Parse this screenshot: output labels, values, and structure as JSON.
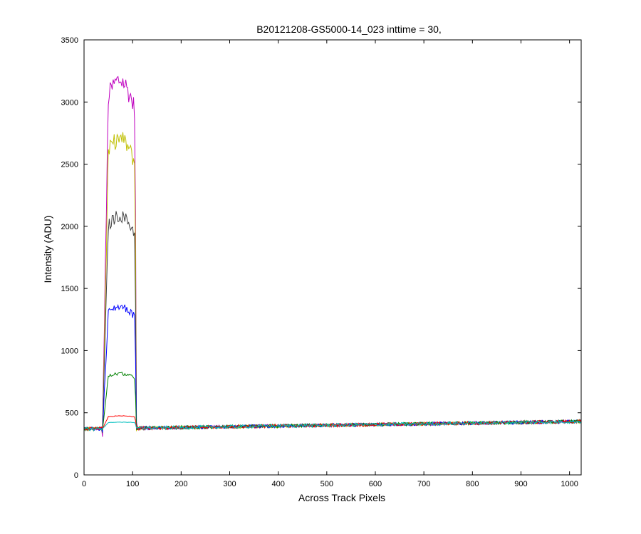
{
  "chart_data": {
    "type": "line",
    "title": "B20121208-GS5000-14_023 inttime = 30,",
    "xlabel": "Across Track Pixels",
    "ylabel": "Intensity (ADU)",
    "xlim": [
      0,
      1024
    ],
    "ylim": [
      0,
      3500
    ],
    "xticks": [
      0,
      100,
      200,
      300,
      400,
      500,
      600,
      700,
      800,
      900,
      1000
    ],
    "yticks": [
      0,
      500,
      1000,
      1500,
      2000,
      2500,
      3000,
      3500
    ],
    "grid": false,
    "legend": "none",
    "series": [
      {
        "color": "#bf00bf",
        "baseline_start": 370,
        "baseline_end": 430,
        "peak_range": [
          38,
          108
        ],
        "peak_level": 3170
      },
      {
        "color": "#bfbf00",
        "baseline_start": 370,
        "baseline_end": 430,
        "peak_range": [
          38,
          108
        ],
        "peak_level": 2700
      },
      {
        "color": "#404040",
        "baseline_start": 370,
        "baseline_end": 430,
        "peak_range": [
          38,
          108
        ],
        "peak_level": 2080
      },
      {
        "color": "#0000ff",
        "baseline_start": 370,
        "baseline_end": 430,
        "peak_range": [
          38,
          108
        ],
        "peak_level": 1350
      },
      {
        "color": "#008000",
        "baseline_start": 370,
        "baseline_end": 430,
        "peak_range": [
          38,
          108
        ],
        "peak_level": 810
      },
      {
        "color": "#ff0000",
        "baseline_start": 370,
        "baseline_end": 430,
        "peak_range": [
          38,
          108
        ],
        "peak_level": 470
      },
      {
        "color": "#00bfbf",
        "baseline_start": 370,
        "baseline_end": 430,
        "peak_range": [
          38,
          108
        ],
        "peak_level": 420
      }
    ]
  }
}
